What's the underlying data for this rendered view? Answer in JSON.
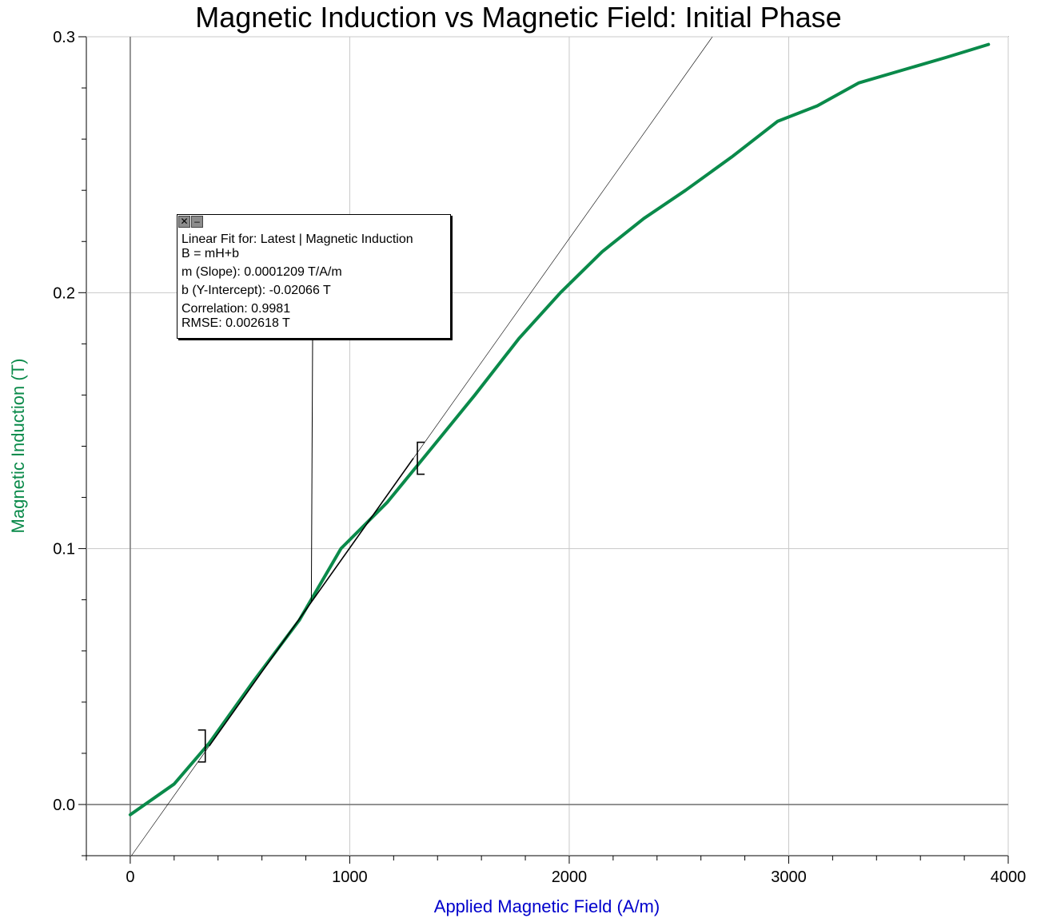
{
  "chart_data": {
    "type": "line",
    "title": "Magnetic Induction vs Magnetic Field: Initial Phase",
    "xlabel": "Applied Magnetic Field (A/m)",
    "ylabel": "Magnetic Induction (T)",
    "xlim": [
      -200,
      4000
    ],
    "ylim": [
      -0.02,
      0.3
    ],
    "x_ticks": [
      0,
      1000,
      2000,
      3000,
      4000
    ],
    "y_ticks": [
      0.0,
      0.1,
      0.2,
      0.3
    ],
    "x_tick_labels": [
      "0",
      "1000",
      "2000",
      "3000",
      "4000"
    ],
    "y_tick_labels": [
      "0.0",
      "0.1",
      "0.2",
      "0.3"
    ],
    "grid": true,
    "series": [
      {
        "color": "#0a8a4a",
        "x": [
          0,
          200,
          360,
          560,
          770,
          960,
          1170,
          1380,
          1570,
          1770,
          1960,
          2150,
          2340,
          2530,
          2740,
          2950,
          3130,
          3320,
          3520,
          3720,
          3910
        ],
        "y": [
          -0.004,
          0.008,
          0.024,
          0.048,
          0.072,
          0.1,
          0.118,
          0.14,
          0.16,
          0.182,
          0.2,
          0.216,
          0.229,
          0.24,
          0.253,
          0.267,
          0.273,
          0.282,
          0.287,
          0.292,
          0.297
        ]
      }
    ],
    "tangent_line": {
      "slope": 0.0001209,
      "intercept": -0.02066
    },
    "fit_range": [
      360,
      1290
    ],
    "fit_box": {
      "title": "Linear Fit for: Latest | Magnetic Induction",
      "equation": "B = mH+b",
      "slope": "m (Slope): 0.0001209 T/A/m",
      "intercept": "b (Y-Intercept): -0.02066 T",
      "correlation": "Correlation: 0.9981",
      "rmse": "RMSE: 0.002618 T"
    },
    "colors": {
      "series": "#0a8a4a",
      "ylabel": "#0a8a4a",
      "xlabel": "#0000cc",
      "grid": "#c8c8c8",
      "axis": "#000000"
    }
  }
}
